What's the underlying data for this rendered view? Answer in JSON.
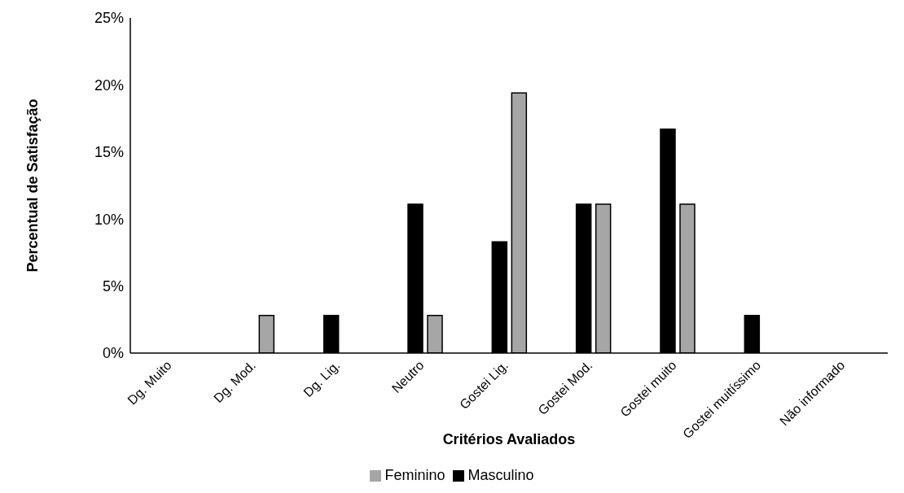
{
  "chart_data": {
    "type": "bar",
    "xlabel": "Critérios Avaliados",
    "ylabel": "Percentual de Satisfação",
    "categories": [
      "Dg. Muito",
      "Dg. Mod.",
      "Dg. Lig.",
      "Neutro",
      "Gostei Lig.",
      "Gostei Mod.",
      "Gostei muito",
      "Gostei muitíssimo",
      "Não informado"
    ],
    "series": [
      {
        "name": "Masculino",
        "color": "#000000",
        "values": [
          0,
          0,
          2.8,
          11.1,
          8.3,
          11.1,
          16.7,
          2.8,
          0
        ]
      },
      {
        "name": "Feminino",
        "color": "#a6a6a6",
        "values": [
          0,
          2.8,
          0,
          2.8,
          19.4,
          11.1,
          11.1,
          0,
          0
        ]
      }
    ],
    "ylim": [
      0,
      25
    ],
    "yticks": [
      {
        "value": 0,
        "label": "0%"
      },
      {
        "value": 5,
        "label": "5%"
      },
      {
        "value": 10,
        "label": "10%"
      },
      {
        "value": 15,
        "label": "15%"
      },
      {
        "value": 20,
        "label": "20%"
      },
      {
        "value": 25,
        "label": "25%"
      }
    ],
    "grid": false,
    "legend": "bottom"
  }
}
